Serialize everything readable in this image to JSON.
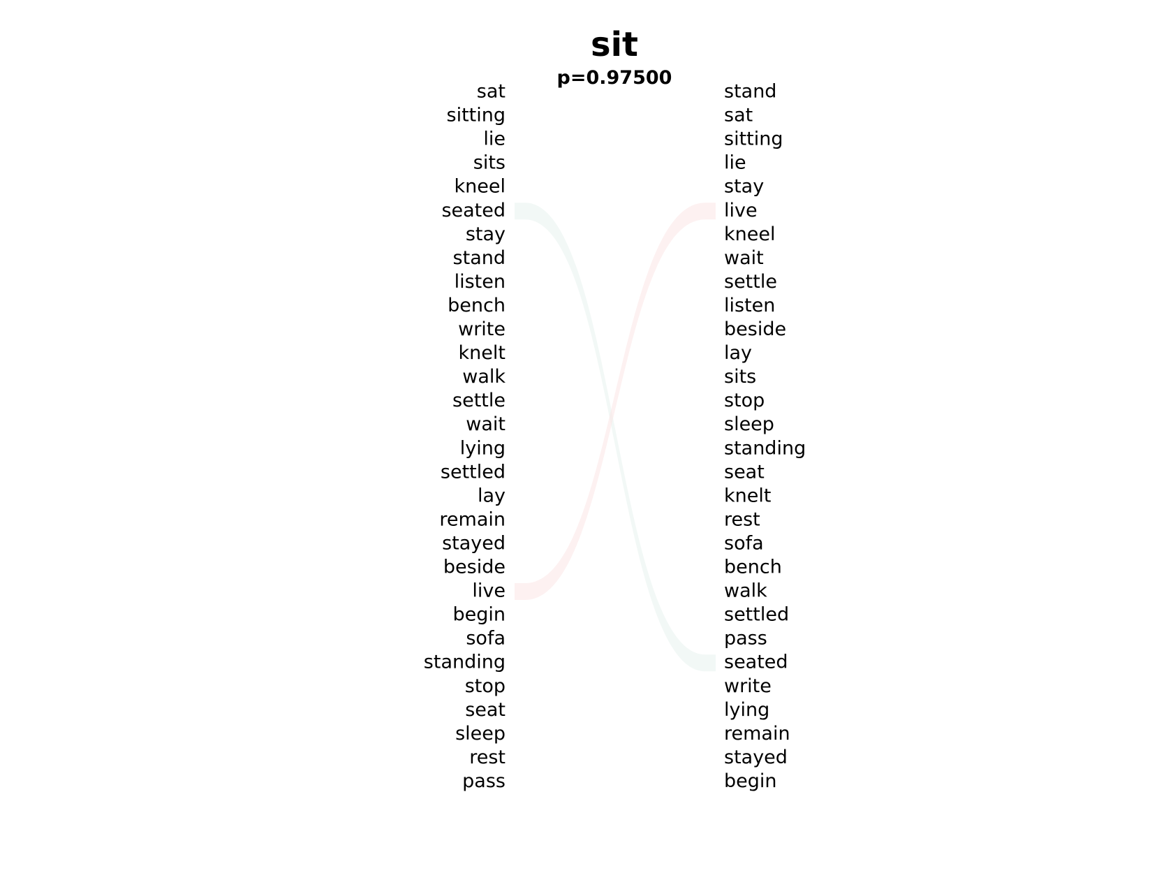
{
  "title": "sit",
  "subtitle": "p=0.97500",
  "left_words": [
    "sat",
    "sitting",
    "lie",
    "sits",
    "kneel",
    "seated",
    "stay",
    "stand",
    "listen",
    "bench",
    "write",
    "knelt",
    "walk",
    "settle",
    "wait",
    "lying",
    "settled",
    "lay",
    "remain",
    "stayed",
    "beside",
    "live",
    "begin",
    "sofa",
    "standing",
    "stop",
    "seat",
    "sleep",
    "rest",
    "pass"
  ],
  "right_words": [
    "stand",
    "sat",
    "sitting",
    "lie",
    "stay",
    "live",
    "kneel",
    "wait",
    "settle",
    "listen",
    "beside",
    "lay",
    "sits",
    "stop",
    "sleep",
    "standing",
    "seat",
    "knelt",
    "rest",
    "sofa",
    "bench",
    "walk",
    "settled",
    "pass",
    "seated",
    "write",
    "lying",
    "remain",
    "stayed",
    "begin"
  ],
  "links": [
    {
      "from_left": "seated",
      "to_right": "seated",
      "color": "#e8f2ee",
      "opacity": 0.55
    },
    {
      "from_left": "live",
      "to_right": "live",
      "color": "#fbe6e6",
      "opacity": 0.55
    }
  ]
}
